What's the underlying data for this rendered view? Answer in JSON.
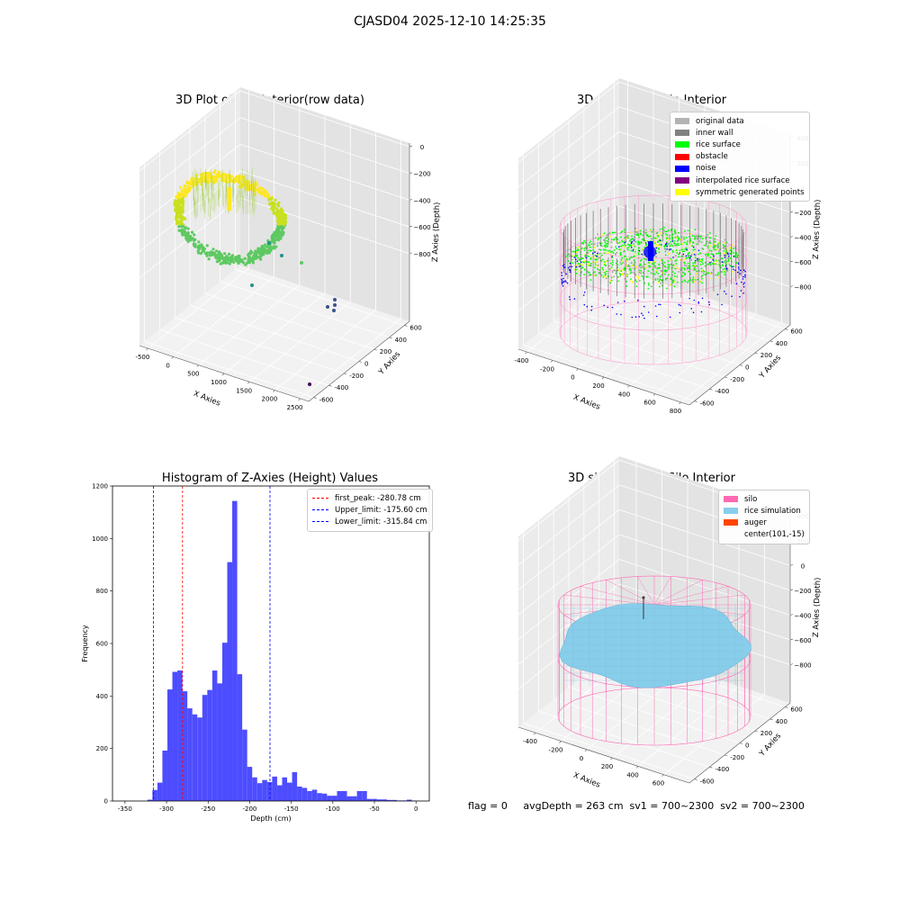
{
  "suptitle": "CJASD04 2025-12-10 14:25:35",
  "footer": "flag = 0     avgDepth = 263 cm  sv1 = 700~2300  sv2 = 700~2300",
  "chart_data": [
    {
      "type": "scatter",
      "title": "3D Plot of Silo Interior(row data)",
      "xlabel": "X Axies",
      "ylabel": "Y Axies",
      "zlabel": "Z Axies (Depth)",
      "x_ticks": [
        "-500",
        "0",
        "500",
        "1000",
        "1500",
        "2000",
        "2500"
      ],
      "y_ticks": [
        "-600",
        "-400",
        "-200",
        "0",
        "200",
        "400",
        "600"
      ],
      "z_ticks": [
        "0",
        "−200",
        "−400",
        "−600",
        "−800"
      ],
      "colormap": [
        "#440154",
        "#3b528b",
        "#21918c",
        "#5ec962",
        "#fde725"
      ],
      "outlier_points": [
        {
          "x": 2550,
          "y": -600,
          "z": -800
        },
        {
          "x": 1950,
          "y": -100,
          "z": -600
        },
        {
          "x": 1900,
          "y": 0,
          "z": -600
        },
        {
          "x": 1900,
          "y": 50,
          "z": -560
        },
        {
          "x": 1000,
          "y": 300,
          "z": -500
        },
        {
          "x": 800,
          "y": 500,
          "z": -380
        },
        {
          "x": 700,
          "y": 550,
          "z": -320
        },
        {
          "x": 600,
          "y": 560,
          "z": -280
        }
      ],
      "grid": true
    },
    {
      "type": "scatter",
      "title": "3D classify of Silo Interior",
      "xlabel": "X Axies",
      "ylabel": "Y Axies",
      "zlabel": "Z Axies (Depth)",
      "x_ticks": [
        "-400",
        "-200",
        "0",
        "200",
        "400",
        "600",
        "800"
      ],
      "y_ticks": [
        "-600",
        "-400",
        "-200",
        "0",
        "200",
        "400",
        "600"
      ],
      "z_ticks": [
        "400",
        "200",
        "0",
        "−200",
        "−400",
        "−600",
        "−800"
      ],
      "legend": [
        {
          "label": "original data",
          "color": "#b3b3b3"
        },
        {
          "label": "inner wall",
          "color": "#808080"
        },
        {
          "label": "rice surface",
          "color": "#00ff00"
        },
        {
          "label": "obstacle",
          "color": "#ff0000"
        },
        {
          "label": "noise",
          "color": "#0000ff"
        },
        {
          "label": "interpolated rice surface",
          "color": "#800080"
        },
        {
          "label": "symmetric generated points",
          "color": "#ffff00"
        }
      ],
      "legend_loc": "upper right",
      "grid": true
    },
    {
      "type": "bar",
      "title": "Histogram of Z-Axies (Height) Values",
      "xlabel": "Depth (cm)",
      "ylabel": "Frequency",
      "xlim": [
        -365,
        16
      ],
      "ylim": [
        0,
        1200
      ],
      "x_ticks": [
        -350,
        -300,
        -250,
        -200,
        -150,
        -100,
        -50,
        0
      ],
      "y_ticks": [
        0,
        200,
        400,
        600,
        800,
        1000,
        1200
      ],
      "bar_color": "#4d4dff",
      "bins": [
        {
          "start": -323.0,
          "end": -317.0,
          "count": 5
        },
        {
          "start": -317.0,
          "end": -311.0,
          "count": 42
        },
        {
          "start": -311.0,
          "end": -305.0,
          "count": 70
        },
        {
          "start": -305.0,
          "end": -299.0,
          "count": 192
        },
        {
          "start": -299.0,
          "end": -293.0,
          "count": 425
        },
        {
          "start": -293.0,
          "end": -287.0,
          "count": 492
        },
        {
          "start": -287.0,
          "end": -281.0,
          "count": 497
        },
        {
          "start": -281.0,
          "end": -275.0,
          "count": 418
        },
        {
          "start": -275.0,
          "end": -269.0,
          "count": 353
        },
        {
          "start": -269.0,
          "end": -263.0,
          "count": 330
        },
        {
          "start": -263.0,
          "end": -257.0,
          "count": 318
        },
        {
          "start": -257.0,
          "end": -251.0,
          "count": 404
        },
        {
          "start": -251.0,
          "end": -245.0,
          "count": 423
        },
        {
          "start": -245.0,
          "end": -239.0,
          "count": 497
        },
        {
          "start": -239.0,
          "end": -233.0,
          "count": 448
        },
        {
          "start": -233.0,
          "end": -227.0,
          "count": 603
        },
        {
          "start": -227.0,
          "end": -221.0,
          "count": 910
        },
        {
          "start": -221.0,
          "end": -215.0,
          "count": 1143
        },
        {
          "start": -215.0,
          "end": -209.0,
          "count": 483
        },
        {
          "start": -209.0,
          "end": -203.0,
          "count": 272
        },
        {
          "start": -203.0,
          "end": -197.0,
          "count": 130
        },
        {
          "start": -197.0,
          "end": -191.0,
          "count": 90
        },
        {
          "start": -191.0,
          "end": -185.0,
          "count": 68
        },
        {
          "start": -185.0,
          "end": -179.0,
          "count": 80
        },
        {
          "start": -179.0,
          "end": -173.0,
          "count": 72
        },
        {
          "start": -173.0,
          "end": -167.0,
          "count": 93
        },
        {
          "start": -167.0,
          "end": -161.0,
          "count": 60
        },
        {
          "start": -161.0,
          "end": -155.0,
          "count": 90
        },
        {
          "start": -155.0,
          "end": -149.0,
          "count": 70
        },
        {
          "start": -149.0,
          "end": -143.0,
          "count": 110
        },
        {
          "start": -143.0,
          "end": -137.0,
          "count": 55
        },
        {
          "start": -137.0,
          "end": -131.0,
          "count": 50
        },
        {
          "start": -131.0,
          "end": -125.0,
          "count": 38
        },
        {
          "start": -125.0,
          "end": -119.0,
          "count": 43
        },
        {
          "start": -119.0,
          "end": -113.0,
          "count": 30
        },
        {
          "start": -113.0,
          "end": -107.0,
          "count": 28
        },
        {
          "start": -107.0,
          "end": -101.0,
          "count": 20
        },
        {
          "start": -101.0,
          "end": -95.0,
          "count": 20
        },
        {
          "start": -95.0,
          "end": -89.0,
          "count": 38
        },
        {
          "start": -89.0,
          "end": -83.0,
          "count": 38
        },
        {
          "start": -83.0,
          "end": -77.0,
          "count": 18
        },
        {
          "start": -77.0,
          "end": -71.0,
          "count": 18
        },
        {
          "start": -71.0,
          "end": -65.0,
          "count": 38
        },
        {
          "start": -65.0,
          "end": -59.0,
          "count": 38
        },
        {
          "start": -59.0,
          "end": -53.0,
          "count": 8
        },
        {
          "start": -53.0,
          "end": -47.0,
          "count": 8
        },
        {
          "start": -47.0,
          "end": -41.0,
          "count": 6
        },
        {
          "start": -41.0,
          "end": -35.0,
          "count": 6
        },
        {
          "start": -35.0,
          "end": -29.0,
          "count": 4
        },
        {
          "start": -29.0,
          "end": -23.0,
          "count": 4
        },
        {
          "start": -23.0,
          "end": -17.0,
          "count": 2
        },
        {
          "start": -17.0,
          "end": -11.0,
          "count": 2
        },
        {
          "start": -11.0,
          "end": -5.0,
          "count": 5
        },
        {
          "start": -5.0,
          "end": 1.0,
          "count": 1
        }
      ],
      "vlines": [
        {
          "label": "first_peak: -280.78 cm",
          "x": -280.78,
          "color": "#ff0000"
        },
        {
          "label": "Upper_limit: -175.60 cm",
          "x": -175.6,
          "color": "#0000ff"
        },
        {
          "label": "Lower_limit: -315.84 cm",
          "x": -315.84,
          "color": "#0000ff"
        }
      ],
      "legend_loc": "upper right"
    },
    {
      "type": "surface",
      "title": "3D simulation of Silo Interior",
      "xlabel": "X Axies",
      "ylabel": "Y Axies",
      "zlabel": "Z Axies (Depth)",
      "x_ticks": [
        "-400",
        "-200",
        "0",
        "200",
        "400",
        "600"
      ],
      "y_ticks": [
        "-600",
        "-400",
        "-200",
        "0",
        "200",
        "400",
        "600"
      ],
      "z_ticks": [
        "400",
        "200",
        "0",
        "−200",
        "−400",
        "−600",
        "−800"
      ],
      "legend": [
        {
          "label": "silo",
          "color": "#ff69b4"
        },
        {
          "label": "rice simulation",
          "color": "#87ceeb"
        },
        {
          "label": "auger",
          "color": "#ff4500"
        },
        {
          "label": "center(101,-15)",
          "color": ""
        }
      ],
      "legend_loc": "upper right",
      "grid": true
    }
  ]
}
